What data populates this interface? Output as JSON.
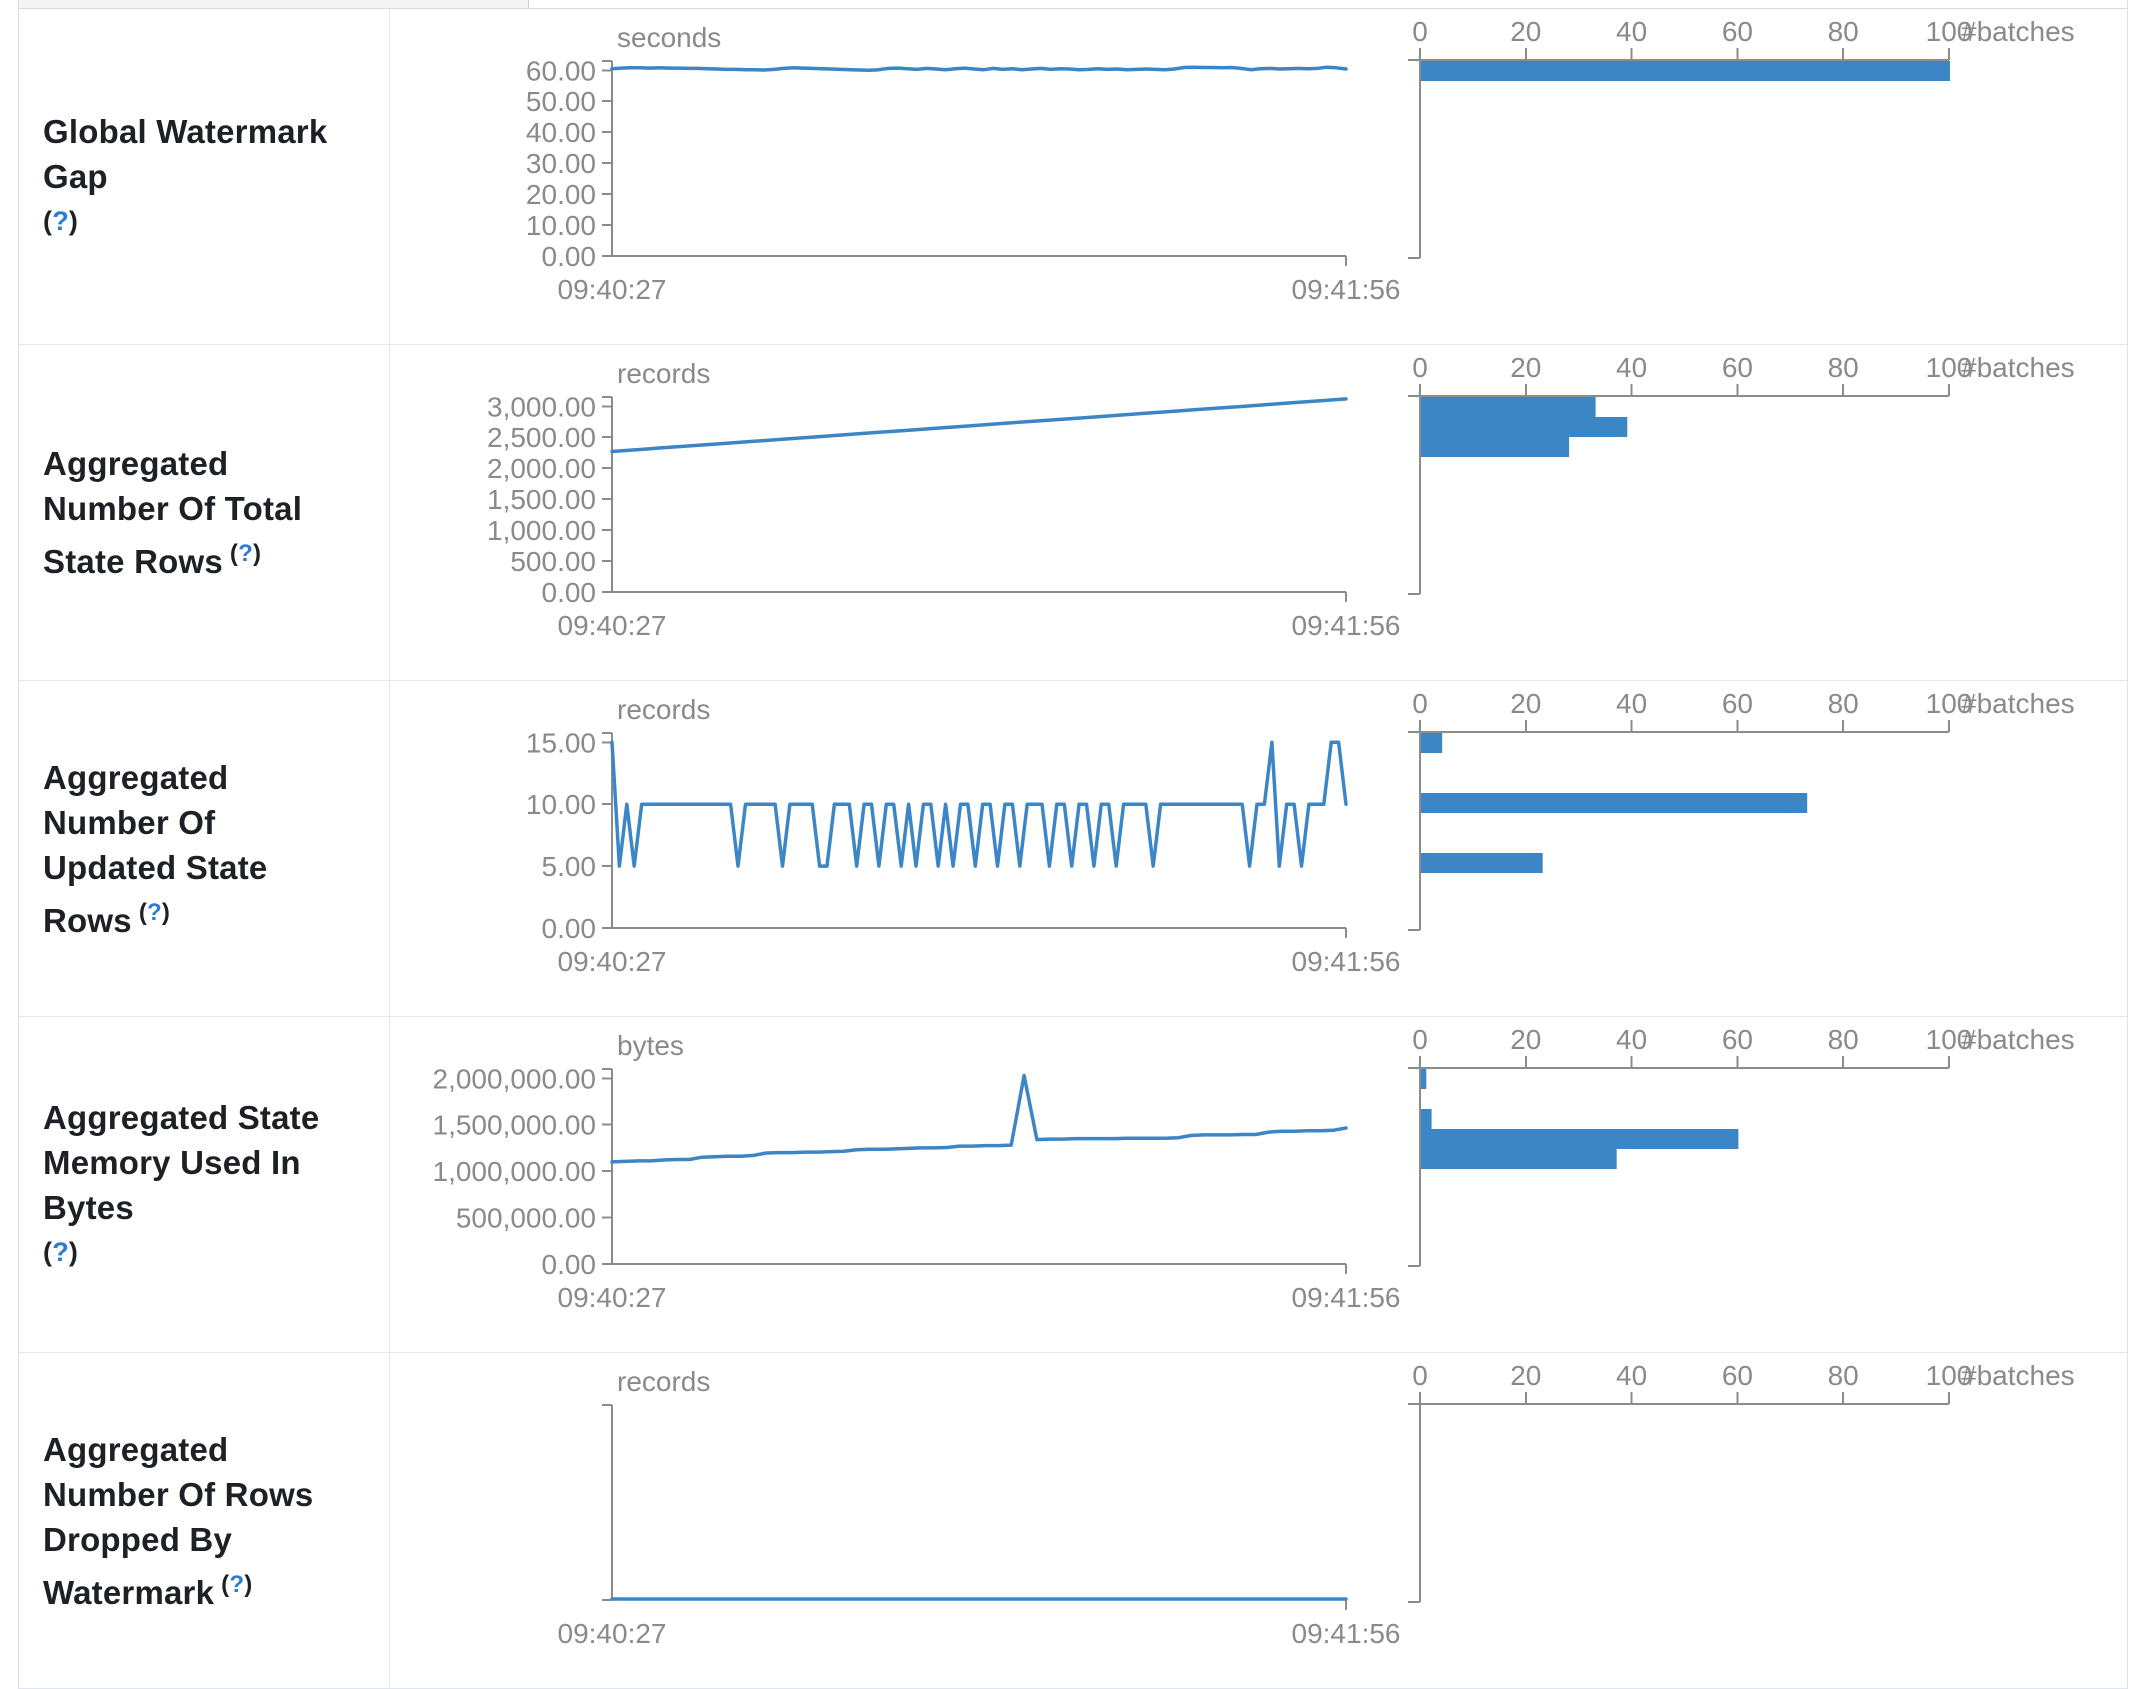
{
  "colors": {
    "accent_blue": "#3d86c6",
    "axis_gray": "#8c8c8c",
    "text_gray": "#8a8a8a",
    "label_dark": "#1d2125",
    "help_blue": "#2b7cd3",
    "border_gray": "#dee2e6"
  },
  "help": {
    "open": "(",
    "q": "?",
    "close": ")"
  },
  "histogram_axis": {
    "ticks": [
      0,
      20,
      40,
      60,
      80,
      100
    ],
    "label": "#batches",
    "max": 100
  },
  "chart_data": [
    {
      "metric": "Global Watermark Gap",
      "help_inline": false,
      "timeline": {
        "type": "line",
        "unit": "seconds",
        "x_start": "09:40:27",
        "x_end": "09:41:56",
        "ylim": [
          0,
          63
        ],
        "yticks": [
          60,
          50,
          40,
          30,
          20,
          10,
          0
        ],
        "values": [
          60.5,
          60.7,
          60.8,
          60.8,
          60.7,
          60.8,
          60.7,
          60.7,
          60.6,
          60.6,
          60.5,
          60.4,
          60.3,
          60.3,
          60.2,
          60.2,
          60.1,
          60.3,
          60.6,
          60.8,
          60.7,
          60.6,
          60.5,
          60.4,
          60.3,
          60.2,
          60.1,
          60.0,
          60.2,
          60.6,
          60.7,
          60.5,
          60.3,
          60.6,
          60.4,
          60.2,
          60.5,
          60.7,
          60.4,
          60.2,
          60.6,
          60.3,
          60.5,
          60.2,
          60.4,
          60.6,
          60.3,
          60.5,
          60.4,
          60.2,
          60.3,
          60.5,
          60.3,
          60.4,
          60.2,
          60.3,
          60.4,
          60.3,
          60.2,
          60.4,
          60.9,
          61.0,
          60.9,
          60.9,
          60.8,
          60.9,
          60.6,
          60.2,
          60.5,
          60.6,
          60.4,
          60.5,
          60.6,
          60.5,
          60.6,
          61.0,
          60.8,
          60.4
        ]
      },
      "histogram": {
        "type": "bar",
        "bars": [
          {
            "count": 100,
            "slot": 0
          }
        ]
      }
    },
    {
      "metric": "Aggregated Number Of Total State Rows",
      "help_inline": true,
      "timeline": {
        "type": "line",
        "unit": "records",
        "x_start": "09:40:27",
        "x_end": "09:41:56",
        "ylim": [
          0,
          3150
        ],
        "yticks": [
          3000,
          2500,
          2000,
          1500,
          1000,
          500,
          0
        ],
        "values": [
          2270,
          2299,
          2329,
          2358,
          2387,
          2416,
          2446,
          2475,
          2504,
          2534,
          2563,
          2592,
          2621,
          2651,
          2680,
          2709,
          2739,
          2768,
          2797,
          2826,
          2856,
          2885,
          2914,
          2944,
          2973,
          3002,
          3031,
          3061,
          3090,
          3120
        ]
      },
      "histogram": {
        "type": "bar",
        "bars": [
          {
            "count": 33,
            "slot": 0
          },
          {
            "count": 39,
            "slot": 1
          },
          {
            "count": 28,
            "slot": 2
          }
        ]
      }
    },
    {
      "metric": "Aggregated Number Of Updated State Rows",
      "help_inline": true,
      "timeline": {
        "type": "line",
        "unit": "records",
        "x_start": "09:40:27",
        "x_end": "09:41:56",
        "ylim": [
          0,
          15.75
        ],
        "yticks": [
          15,
          10,
          5,
          0
        ],
        "values": [
          15,
          5,
          10,
          5,
          10,
          10,
          10,
          10,
          10,
          10,
          10,
          10,
          10,
          10,
          10,
          10,
          10,
          5,
          10,
          10,
          10,
          10,
          10,
          5,
          10,
          10,
          10,
          10,
          5,
          5,
          10,
          10,
          10,
          5,
          10,
          10,
          5,
          10,
          10,
          5,
          10,
          5,
          10,
          10,
          5,
          10,
          5,
          10,
          10,
          5,
          10,
          10,
          5,
          10,
          10,
          5,
          10,
          10,
          10,
          5,
          10,
          10,
          5,
          10,
          10,
          5,
          10,
          10,
          5,
          10,
          10,
          10,
          10,
          5,
          10,
          10,
          10,
          10,
          10,
          10,
          10,
          10,
          10,
          10,
          10,
          10,
          5,
          10,
          10,
          15,
          5,
          10,
          10,
          5,
          10,
          10,
          10,
          15,
          15,
          10
        ]
      },
      "histogram": {
        "type": "bar",
        "bars": [
          {
            "count": 4,
            "slot": 0
          },
          {
            "count": 73,
            "slot": 3
          },
          {
            "count": 23,
            "slot": 6
          }
        ]
      }
    },
    {
      "metric": "Aggregated State Memory Used In Bytes",
      "help_inline": false,
      "timeline": {
        "type": "line",
        "unit": "bytes",
        "x_start": "09:40:27",
        "x_end": "09:41:56",
        "ylim": [
          0,
          2100000
        ],
        "yticks": [
          2000000,
          1500000,
          1000000,
          500000,
          0
        ],
        "values": [
          1100000,
          1105000,
          1110000,
          1110000,
          1120000,
          1125000,
          1125000,
          1150000,
          1155000,
          1160000,
          1160000,
          1170000,
          1195000,
          1200000,
          1200000,
          1205000,
          1205000,
          1210000,
          1215000,
          1230000,
          1235000,
          1235000,
          1240000,
          1245000,
          1250000,
          1250000,
          1255000,
          1270000,
          1270000,
          1275000,
          1275000,
          1280000,
          2030000,
          1340000,
          1345000,
          1345000,
          1350000,
          1350000,
          1350000,
          1350000,
          1355000,
          1355000,
          1355000,
          1355000,
          1360000,
          1385000,
          1390000,
          1390000,
          1390000,
          1395000,
          1395000,
          1420000,
          1430000,
          1430000,
          1435000,
          1435000,
          1440000,
          1465000
        ]
      },
      "histogram": {
        "type": "bar",
        "bars": [
          {
            "count": 1,
            "slot": 0
          },
          {
            "count": 2,
            "slot": 2
          },
          {
            "count": 60,
            "slot": 3
          },
          {
            "count": 37,
            "slot": 4
          }
        ]
      }
    },
    {
      "metric": "Aggregated Number Of Rows Dropped By Watermark",
      "help_inline": true,
      "timeline": {
        "type": "line",
        "unit": "records",
        "x_start": "09:40:27",
        "x_end": "09:41:56",
        "ylim": [
          0,
          1
        ],
        "yticks": [],
        "values": [
          0,
          0,
          0,
          0,
          0,
          0,
          0,
          0,
          0,
          0,
          0,
          0,
          0,
          0,
          0,
          0,
          0,
          0,
          0,
          0,
          0,
          0,
          0,
          0,
          0,
          0,
          0,
          0,
          0,
          0,
          0,
          0,
          0,
          0,
          0,
          0,
          0,
          0,
          0,
          0
        ]
      },
      "histogram": {
        "type": "bar",
        "bars": []
      }
    }
  ]
}
